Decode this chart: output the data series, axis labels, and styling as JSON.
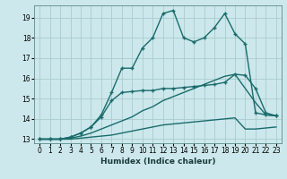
{
  "xlabel": "Humidex (Indice chaleur)",
  "bg_color": "#cce8ec",
  "grid_color": "#aacccc",
  "line_color": "#1a6b6b",
  "xlim": [
    -0.5,
    23.5
  ],
  "ylim": [
    12.8,
    19.6
  ],
  "yticks": [
    13,
    14,
    15,
    16,
    17,
    18,
    19
  ],
  "xticks": [
    0,
    1,
    2,
    3,
    4,
    5,
    6,
    7,
    8,
    9,
    10,
    11,
    12,
    13,
    14,
    15,
    16,
    17,
    18,
    19,
    20,
    21,
    22,
    23
  ],
  "lines": [
    {
      "x": [
        0,
        1,
        2,
        3,
        4,
        5,
        6,
        7,
        8,
        9,
        10,
        11,
        12,
        13,
        14,
        15,
        16,
        17,
        18,
        19,
        20,
        21,
        22,
        23
      ],
      "y": [
        13.0,
        13.0,
        13.0,
        13.0,
        13.05,
        13.1,
        13.15,
        13.2,
        13.3,
        13.4,
        13.5,
        13.6,
        13.7,
        13.75,
        13.8,
        13.85,
        13.9,
        13.95,
        14.0,
        14.05,
        13.5,
        13.5,
        13.55,
        13.6
      ],
      "marker": false,
      "lw": 1.0
    },
    {
      "x": [
        0,
        1,
        2,
        3,
        4,
        5,
        6,
        7,
        8,
        9,
        10,
        11,
        12,
        13,
        14,
        15,
        16,
        17,
        18,
        19,
        20,
        21,
        22,
        23
      ],
      "y": [
        13.0,
        13.0,
        13.0,
        13.05,
        13.15,
        13.3,
        13.5,
        13.7,
        13.9,
        14.1,
        14.4,
        14.6,
        14.9,
        15.1,
        15.3,
        15.5,
        15.7,
        15.9,
        16.1,
        16.2,
        15.5,
        14.8,
        14.2,
        14.15
      ],
      "marker": false,
      "lw": 1.0
    },
    {
      "x": [
        0,
        1,
        2,
        3,
        4,
        5,
        6,
        7,
        8,
        9,
        10,
        11,
        12,
        13,
        14,
        15,
        16,
        17,
        18,
        19,
        20,
        21,
        22,
        23
      ],
      "y": [
        13.0,
        13.0,
        13.0,
        13.1,
        13.3,
        13.6,
        14.1,
        14.9,
        15.3,
        15.35,
        15.4,
        15.4,
        15.5,
        15.5,
        15.55,
        15.6,
        15.65,
        15.7,
        15.8,
        16.2,
        16.15,
        15.5,
        14.3,
        14.15
      ],
      "marker": true,
      "lw": 1.0
    },
    {
      "x": [
        0,
        1,
        2,
        3,
        4,
        5,
        6,
        7,
        8,
        9,
        10,
        11,
        12,
        13,
        14,
        15,
        16,
        17,
        18,
        19,
        20,
        21,
        22,
        23
      ],
      "y": [
        13.0,
        13.0,
        13.0,
        13.1,
        13.3,
        13.6,
        14.2,
        15.3,
        16.5,
        16.5,
        17.5,
        18.0,
        19.2,
        19.35,
        18.0,
        17.8,
        18.0,
        18.5,
        19.2,
        18.2,
        17.7,
        14.3,
        14.2,
        14.15
      ],
      "marker": true,
      "lw": 1.0
    }
  ]
}
